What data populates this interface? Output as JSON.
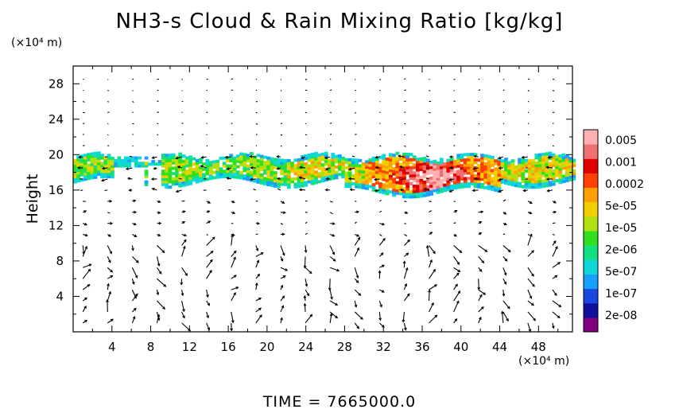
{
  "title": "NH3-s Cloud & Rain Mixing Ratio [kg/kg]",
  "time_label": "TIME =  7665000.0",
  "chart_data": {
    "type": "heatmap",
    "title": "NH3-s Cloud & Rain Mixing Ratio [kg/kg]",
    "ylabel": "Height",
    "xunit": "(×10⁴ m)",
    "yunit": "(×10⁴ m)",
    "xlim": [
      0,
      51.5
    ],
    "ylim": [
      0,
      30
    ],
    "xticks": [
      "4",
      "8",
      "12",
      "16",
      "20",
      "24",
      "28",
      "32",
      "36",
      "40",
      "44",
      "48"
    ],
    "yticks": [
      "4",
      "8",
      "12",
      "16",
      "20",
      "24",
      "28"
    ],
    "colorbar": {
      "labels": [
        "0.005",
        "0.001",
        "0.0002",
        "5e-05",
        "1e-05",
        "2e-06",
        "5e-07",
        "1e-07",
        "2e-08"
      ],
      "colors": [
        "#800080",
        "#1010a0",
        "#1848e0",
        "#18a0ff",
        "#10d8d8",
        "#10e080",
        "#30e020",
        "#b0e010",
        "#f0d000",
        "#ffa000",
        "#ff4000",
        "#e00000",
        "#f07070",
        "#ffb0b0"
      ]
    },
    "cloud_band": {
      "x_start": 0,
      "x_end": 51.5,
      "height_bottom": 16,
      "height_top": 20,
      "max_near_x": 37,
      "max_near_height": 17.5
    },
    "overlay": "wind vectors",
    "grid": false
  }
}
